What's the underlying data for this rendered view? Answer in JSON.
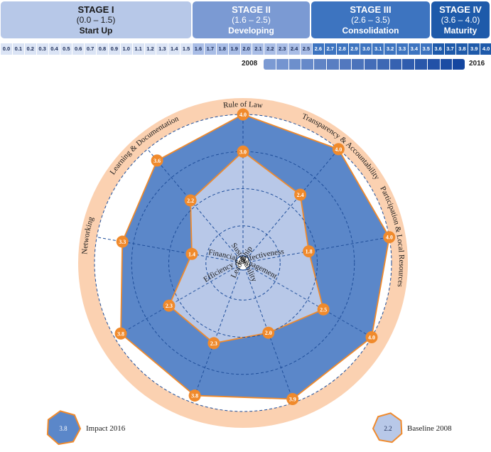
{
  "stages": [
    {
      "name": "STAGE I",
      "range": "(0.0 – 1.5)",
      "label": "Start Up",
      "bg": "#b7c8e8",
      "fg": "#1a1a1a"
    },
    {
      "name": "STAGE II",
      "range": "(1.6 – 2.5)",
      "label": "Developing",
      "bg": "#7b9ad3",
      "fg": "#ffffff"
    },
    {
      "name": "STAGE III",
      "range": "(2.6 – 3.5)",
      "label": "Consolidation",
      "bg": "#3d74c0",
      "fg": "#ffffff"
    },
    {
      "name": "STAGE IV",
      "range": "(3.6 – 4.0)",
      "label": "Maturity",
      "bg": "#1e5aaa",
      "fg": "#ffffff"
    }
  ],
  "scale": [
    "0.0",
    "0.1",
    "0.2",
    "0.3",
    "0.4",
    "0.5",
    "0.6",
    "0.7",
    "0.8",
    "0.9",
    "1.0",
    "1.1",
    "1.2",
    "1.3",
    "1.4",
    "1.5",
    "1.6",
    "1.7",
    "1.8",
    "1.9",
    "2.0",
    "2.1",
    "2.2",
    "2.3",
    "2.4",
    "2.5",
    "2.6",
    "2.7",
    "2.8",
    "2.9",
    "3.0",
    "3.1",
    "3.2",
    "3.3",
    "3.4",
    "3.5",
    "3.6",
    "3.7",
    "3.8",
    "3.9",
    "4.0"
  ],
  "timeline": {
    "start": "2008",
    "end": "2016"
  },
  "chart_data": {
    "type": "radar",
    "categories": [
      "Rule of Law",
      "Transparency & Accountability",
      "Participation & Local Resources",
      "Leadership",
      "Efficiency & Effectiveness",
      "Financial Management",
      "Sustainability",
      "Networking",
      "Learning & Documentation"
    ],
    "series": [
      {
        "name": "Impact 2016",
        "values": [
          4.0,
          4.0,
          4.0,
          4.0,
          3.9,
          3.8,
          3.8,
          3.3,
          3.6
        ],
        "color": "#5b87c9"
      },
      {
        "name": "Baseline 2008",
        "values": [
          3.0,
          2.4,
          1.8,
          2.5,
          2.0,
          2.3,
          2.3,
          1.4,
          2.2
        ],
        "color": "#b8c8e8"
      }
    ],
    "rlim": [
      0,
      4
    ],
    "legend": {
      "impact_sample": "3.8",
      "baseline_sample": "2.2"
    }
  },
  "colors": {
    "outer_ring": "#fbd1b1",
    "marker": "#f08a2c",
    "grid": "#1f4e9a"
  }
}
